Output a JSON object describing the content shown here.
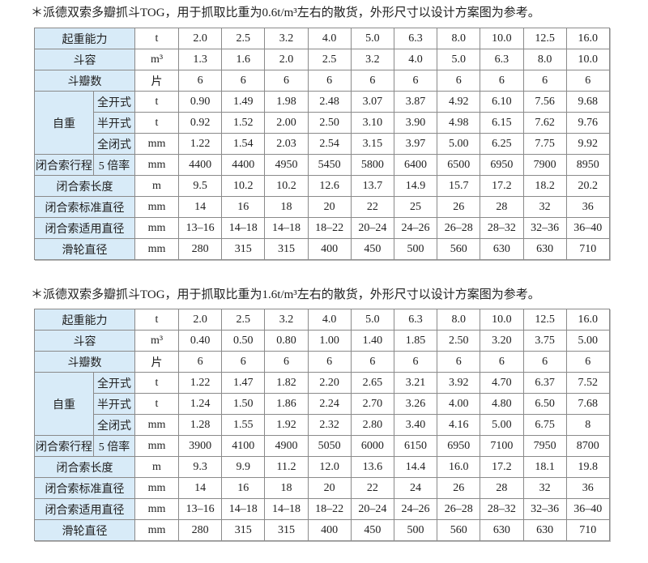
{
  "tables": [
    {
      "note": "＊派德双索多瓣抓斗TOG，用于抓取比重为0.6t/m³左右的散货，外形尺寸以设计方案图为参考。",
      "rows": [
        {
          "label": "起重能力",
          "unit": "t",
          "values": [
            "2.0",
            "2.5",
            "3.2",
            "4.0",
            "5.0",
            "6.3",
            "8.0",
            "10.0",
            "12.5",
            "16.0"
          ]
        },
        {
          "label": "斗容",
          "unit": "m³",
          "values": [
            "1.3",
            "1.6",
            "2.0",
            "2.5",
            "3.2",
            "4.0",
            "5.0",
            "6.3",
            "8.0",
            "10.0"
          ]
        },
        {
          "label": "斗瓣数",
          "unit": "片",
          "values": [
            "6",
            "6",
            "6",
            "6",
            "6",
            "6",
            "6",
            "6",
            "6",
            "6"
          ]
        },
        {
          "label": "自重",
          "sublabel": "全开式",
          "unit": "t",
          "values": [
            "0.90",
            "1.49",
            "1.98",
            "2.48",
            "3.07",
            "3.87",
            "4.92",
            "6.10",
            "7.56",
            "9.68"
          ]
        },
        {
          "sublabel": "半开式",
          "unit": "t",
          "values": [
            "0.92",
            "1.52",
            "2.00",
            "2.50",
            "3.10",
            "3.90",
            "4.98",
            "6.15",
            "7.62",
            "9.76"
          ]
        },
        {
          "sublabel": "全闭式",
          "unit": "mm",
          "values": [
            "1.22",
            "1.54",
            "2.03",
            "2.54",
            "3.15",
            "3.97",
            "5.00",
            "6.25",
            "7.75",
            "9.92"
          ]
        },
        {
          "label": "闭合索行程",
          "sublabel": "5 倍率",
          "unit": "mm",
          "values": [
            "4400",
            "4400",
            "4950",
            "5450",
            "5800",
            "6400",
            "6500",
            "6950",
            "7900",
            "8950"
          ]
        },
        {
          "label": "闭合索长度",
          "unit": "m",
          "values": [
            "9.5",
            "10.2",
            "10.2",
            "12.6",
            "13.7",
            "14.9",
            "15.7",
            "17.2",
            "18.2",
            "20.2"
          ]
        },
        {
          "label": "闭合索标准直径",
          "unit": "mm",
          "values": [
            "14",
            "16",
            "18",
            "20",
            "22",
            "25",
            "26",
            "28",
            "32",
            "36"
          ]
        },
        {
          "label": "闭合索适用直径",
          "unit": "mm",
          "values": [
            "13–16",
            "14–18",
            "14–18",
            "18–22",
            "20–24",
            "24–26",
            "26–28",
            "28–32",
            "32–36",
            "36–40"
          ]
        },
        {
          "label": "滑轮直径",
          "unit": "mm",
          "values": [
            "280",
            "315",
            "315",
            "400",
            "450",
            "500",
            "560",
            "630",
            "630",
            "710"
          ]
        }
      ]
    },
    {
      "note": "＊派德双索多瓣抓斗TOG，用于抓取比重为1.6t/m³左右的散货，外形尺寸以设计方案图为参考。",
      "rows": [
        {
          "label": "起重能力",
          "unit": "t",
          "values": [
            "2.0",
            "2.5",
            "3.2",
            "4.0",
            "5.0",
            "6.3",
            "8.0",
            "10.0",
            "12.5",
            "16.0"
          ]
        },
        {
          "label": "斗容",
          "unit": "m³",
          "values": [
            "0.40",
            "0.50",
            "0.80",
            "1.00",
            "1.40",
            "1.85",
            "2.50",
            "3.20",
            "3.75",
            "5.00"
          ]
        },
        {
          "label": "斗瓣数",
          "unit": "片",
          "values": [
            "6",
            "6",
            "6",
            "6",
            "6",
            "6",
            "6",
            "6",
            "6",
            "6"
          ]
        },
        {
          "label": "自重",
          "sublabel": "全开式",
          "unit": "t",
          "values": [
            "1.22",
            "1.47",
            "1.82",
            "2.20",
            "2.65",
            "3.21",
            "3.92",
            "4.70",
            "6.37",
            "7.52"
          ]
        },
        {
          "sublabel": "半开式",
          "unit": "t",
          "values": [
            "1.24",
            "1.50",
            "1.86",
            "2.24",
            "2.70",
            "3.26",
            "4.00",
            "4.80",
            "6.50",
            "7.68"
          ]
        },
        {
          "sublabel": "全闭式",
          "unit": "mm",
          "values": [
            "1.28",
            "1.55",
            "1.92",
            "2.32",
            "2.80",
            "3.40",
            "4.16",
            "5.00",
            "6.75",
            "8"
          ]
        },
        {
          "label": "闭合索行程",
          "sublabel": "5 倍率",
          "unit": "mm",
          "values": [
            "3900",
            "4100",
            "4900",
            "5050",
            "6000",
            "6150",
            "6950",
            "7100",
            "7950",
            "8700"
          ]
        },
        {
          "label": "闭合索长度",
          "unit": "m",
          "values": [
            "9.3",
            "9.9",
            "11.2",
            "12.0",
            "13.6",
            "14.4",
            "16.0",
            "17.2",
            "18.1",
            "19.8"
          ]
        },
        {
          "label": "闭合索标准直径",
          "unit": "mm",
          "values": [
            "14",
            "16",
            "18",
            "20",
            "22",
            "24",
            "26",
            "28",
            "32",
            "36"
          ]
        },
        {
          "label": "闭合索适用直径",
          "unit": "mm",
          "values": [
            "13–16",
            "14–18",
            "14–18",
            "18–22",
            "20–24",
            "24–26",
            "26–28",
            "28–32",
            "32–36",
            "36–40"
          ]
        },
        {
          "label": "滑轮直径",
          "unit": "mm",
          "values": [
            "280",
            "315",
            "315",
            "400",
            "450",
            "500",
            "560",
            "630",
            "630",
            "710"
          ]
        }
      ]
    }
  ],
  "colors": {
    "header_bg": "#d8ebf8",
    "border": "#8a8a8a"
  }
}
